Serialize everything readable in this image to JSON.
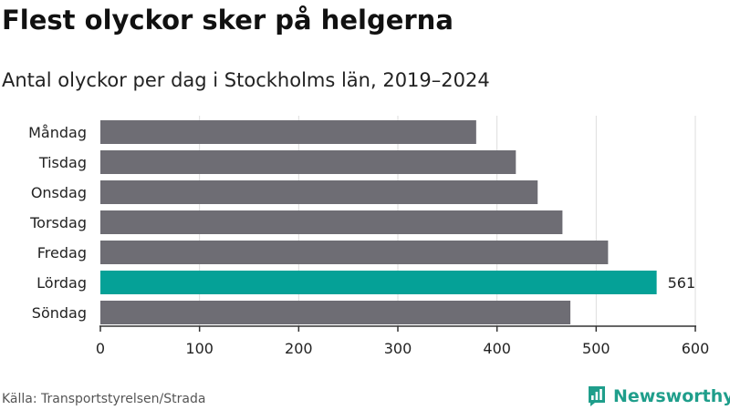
{
  "title": "Flest olyckor sker på helgerna",
  "subtitle": "Antal olyckor per dag i Stockholms län, 2019–2024",
  "source": "Källa: Transportstyrelsen/Strada",
  "logo_text": "Newsworthy",
  "colors": {
    "bar": "#6e6d74",
    "highlight": "#05a197",
    "grid": "#dddddd",
    "axis": "#333333",
    "brand": "#1f9e8b"
  },
  "chart_data": {
    "type": "bar",
    "orientation": "horizontal",
    "categories": [
      "Måndag",
      "Tisdag",
      "Onsdag",
      "Torsdag",
      "Fredag",
      "Lördag",
      "Söndag"
    ],
    "values": [
      379,
      419,
      441,
      466,
      512,
      561,
      474
    ],
    "highlight_index": 5,
    "data_labels": [
      {
        "index": 5,
        "text": "561"
      }
    ],
    "xlim": [
      0,
      600
    ],
    "xticks": [
      0,
      100,
      200,
      300,
      400,
      500,
      600
    ],
    "grid": "vertical",
    "title": "Flest olyckor sker på helgerna",
    "subtitle": "Antal olyckor per dag i Stockholms län, 2019–2024",
    "xlabel": "",
    "ylabel": ""
  }
}
